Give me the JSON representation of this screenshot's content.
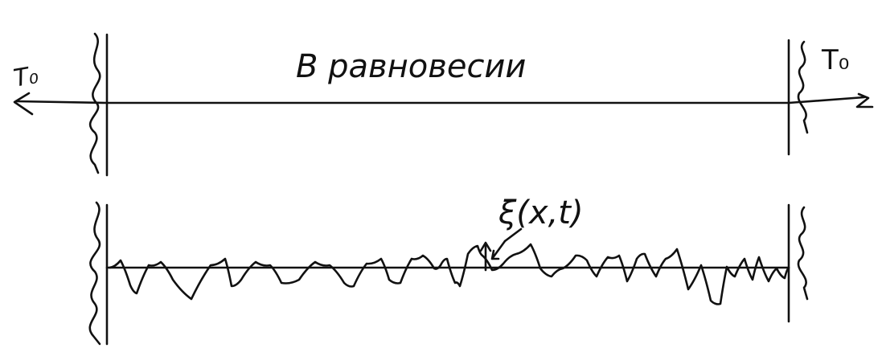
{
  "top_panel": {
    "caption": "В равновесии",
    "tension_left": "T₀",
    "tension_right": "T₀"
  },
  "bottom_panel": {
    "displacement_label": "ξ(x,t)"
  },
  "colors": {
    "ink": "#111111",
    "background": "#ffffff"
  }
}
